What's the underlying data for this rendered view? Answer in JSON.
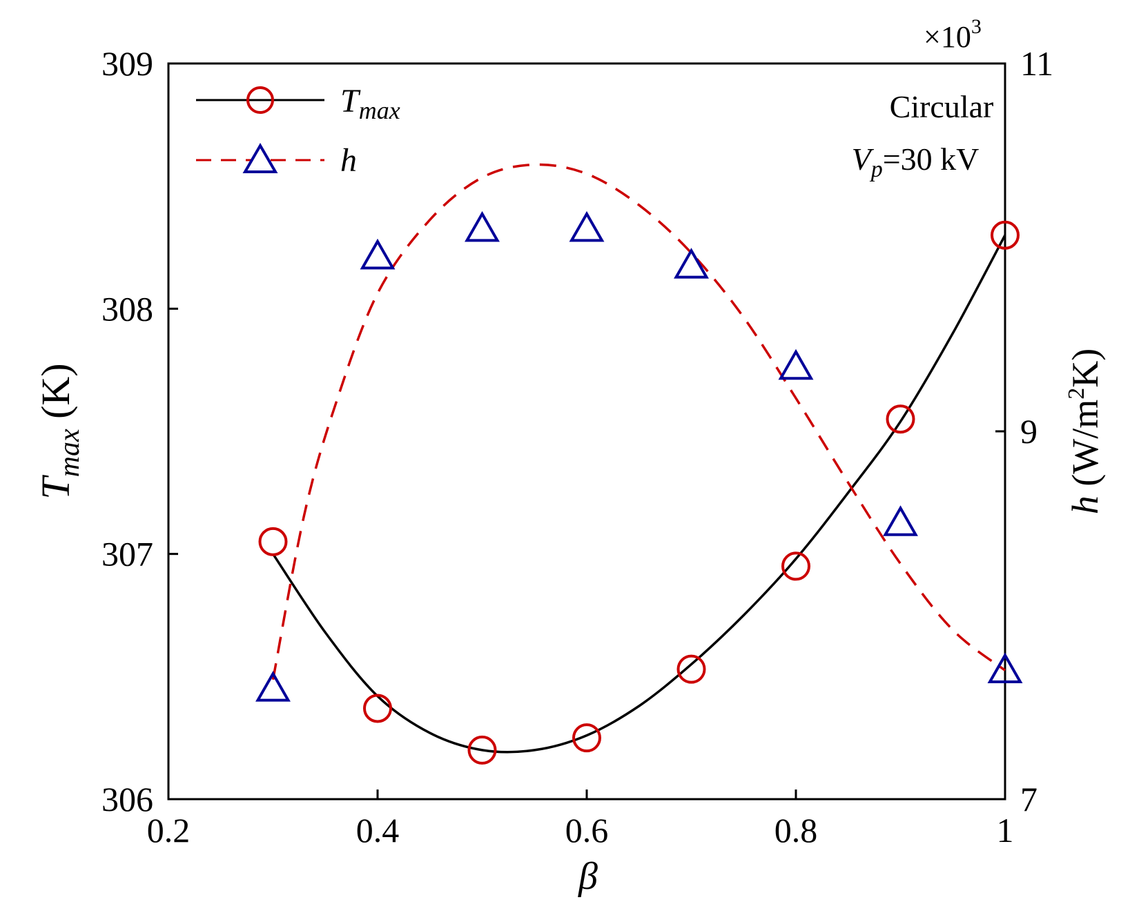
{
  "chart_data": {
    "type": "line",
    "x": [
      0.3,
      0.4,
      0.5,
      0.6,
      0.7,
      0.8,
      0.9,
      1.0
    ],
    "xlim": [
      0.2,
      1.0
    ],
    "x_ticks": [
      "0.2",
      "0.4",
      "0.6",
      "0.8",
      "1"
    ],
    "x_tick_values": [
      0.2,
      0.4,
      0.6,
      0.8,
      1.0
    ],
    "xlabel": "β",
    "y_left": {
      "label_main": "T",
      "label_sub": "max",
      "label_unit": "(K)",
      "lim": [
        306,
        309
      ],
      "ticks": [
        "306",
        "307",
        "308",
        "309"
      ],
      "tick_values": [
        306,
        307,
        308,
        309
      ]
    },
    "y_right": {
      "label_main": "h",
      "label_unit_before_sup": "(W/m",
      "label_sup": "2",
      "label_unit_after_sup": "K)",
      "lim": [
        7,
        11
      ],
      "ticks": [
        "7",
        "9",
        "11"
      ],
      "tick_values": [
        7,
        9,
        11
      ],
      "multiplier_base": "×10",
      "multiplier_exp": "3"
    },
    "series": [
      {
        "name_main": "T",
        "name_sub": "max",
        "axis": "left",
        "line_color": "#000000",
        "marker_color": "#cc0000",
        "line_style": "solid",
        "marker": "circle",
        "values": [
          307.05,
          306.37,
          306.2,
          306.25,
          306.53,
          306.95,
          307.55,
          308.3
        ],
        "fit_curve": [
          [
            0.3,
            307.0
          ],
          [
            0.35,
            306.68
          ],
          [
            0.4,
            306.42
          ],
          [
            0.45,
            306.27
          ],
          [
            0.5,
            306.2
          ],
          [
            0.55,
            306.2
          ],
          [
            0.6,
            306.26
          ],
          [
            0.65,
            306.38
          ],
          [
            0.7,
            306.55
          ],
          [
            0.75,
            306.75
          ],
          [
            0.8,
            306.98
          ],
          [
            0.85,
            307.25
          ],
          [
            0.9,
            307.54
          ],
          [
            0.95,
            307.9
          ],
          [
            1.0,
            308.3
          ]
        ]
      },
      {
        "name_main": "h",
        "name_sub": "",
        "axis": "right",
        "line_color": "#cc0000",
        "marker_color": "#000099",
        "line_style": "dashed",
        "marker": "triangle",
        "values": [
          7.6,
          9.95,
          10.1,
          10.1,
          9.9,
          9.35,
          8.5,
          7.7
        ],
        "fit_curve": [
          [
            0.3,
            7.65
          ],
          [
            0.33,
            8.55
          ],
          [
            0.36,
            9.15
          ],
          [
            0.4,
            9.75
          ],
          [
            0.45,
            10.15
          ],
          [
            0.5,
            10.38
          ],
          [
            0.55,
            10.45
          ],
          [
            0.6,
            10.4
          ],
          [
            0.65,
            10.23
          ],
          [
            0.7,
            9.97
          ],
          [
            0.75,
            9.62
          ],
          [
            0.8,
            9.18
          ],
          [
            0.85,
            8.72
          ],
          [
            0.9,
            8.28
          ],
          [
            0.95,
            7.92
          ],
          [
            1.0,
            7.7
          ]
        ]
      }
    ],
    "legend_position": "top-left",
    "annotation": {
      "line1": "Circular",
      "line2_main": "V",
      "line2_sub": "p",
      "line2_rest": "=30 kV",
      "position": "top-right"
    },
    "grid": false
  }
}
